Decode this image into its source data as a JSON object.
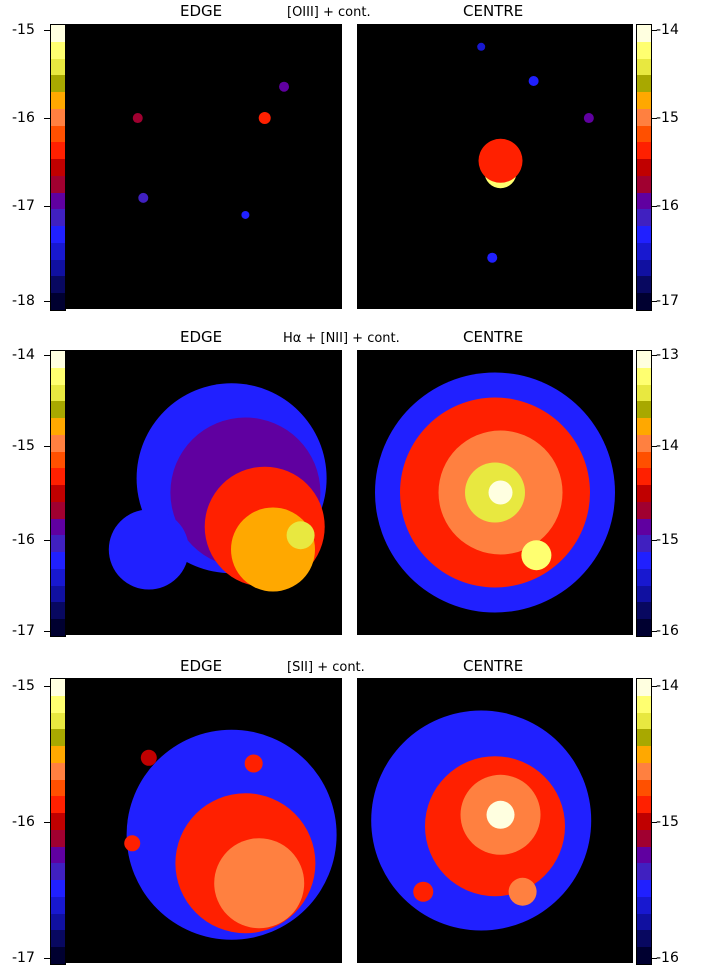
{
  "rows": [
    {
      "edge_label": "EDGE",
      "title": "[OIII] + cont.",
      "centre_label": "CENTRE",
      "left_ticks": [
        "-15",
        "-16",
        "-17",
        "-18"
      ],
      "right_ticks": [
        "-14",
        "-15",
        "-16",
        "-17"
      ]
    },
    {
      "edge_label": "EDGE",
      "title": "Hα + [NII] + cont.",
      "centre_label": "CENTRE",
      "left_ticks": [
        "-14",
        "-15",
        "-16",
        "-17"
      ],
      "right_ticks": [
        "-13",
        "-14",
        "-15",
        "-16"
      ]
    },
    {
      "edge_label": "EDGE",
      "title": "[SII] + cont.",
      "centre_label": "CENTRE",
      "left_ticks": [
        "-15",
        "-16",
        "-17"
      ],
      "right_ticks": [
        "-14",
        "-15",
        "-16"
      ]
    }
  ],
  "colormap": [
    "#ffffe0",
    "#ffff70",
    "#e8e840",
    "#a8a800",
    "#ffa800",
    "#ff8040",
    "#ff5000",
    "#ff2000",
    "#c00000",
    "#a00030",
    "#6000a0",
    "#4020c0",
    "#2020ff",
    "#1818d0",
    "#1010a0",
    "#080860",
    "#000030"
  ]
}
